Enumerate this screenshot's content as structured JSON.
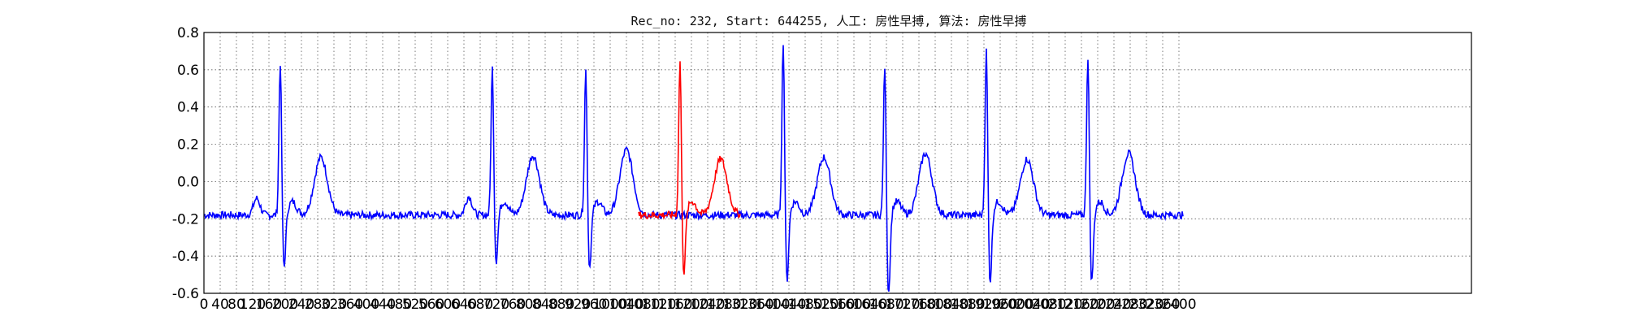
{
  "chart_data": {
    "type": "line",
    "title": "Rec_no: 232, Start: 644255, 人工: 房性早搏, 算法: 房性早搏",
    "xlabel": "",
    "ylabel": "",
    "xlim": [
      0,
      3120
    ],
    "ylim": [
      -0.6,
      0.8
    ],
    "grid": true,
    "y_ticks": [
      "0.8",
      "0.6",
      "0.4",
      "0.2",
      "0.0",
      "-0.2",
      "-0.4",
      "-0.6"
    ],
    "x_ticks": [
      0,
      40,
      80,
      120,
      160,
      200,
      240,
      280,
      320,
      360,
      400,
      440,
      480,
      520,
      560,
      600,
      640,
      680,
      720,
      760,
      800,
      840,
      880,
      920,
      960,
      1000,
      1040,
      1080,
      1120,
      1160,
      1200,
      1240,
      1280,
      1320,
      1360,
      1400,
      1440,
      1480,
      1520,
      1560,
      1600,
      1640,
      1680,
      1720,
      1760,
      1800,
      1840,
      1880,
      1920,
      1960,
      2000,
      2040,
      2080,
      2120,
      2160,
      2200,
      2240,
      2280,
      2320,
      2360,
      2400
    ],
    "x_tick_labels": [
      "0",
      "40",
      "80",
      "120",
      "160",
      "200",
      "240",
      "280",
      "320",
      "360",
      "400",
      "440",
      "480",
      "520",
      "560",
      "600",
      "640",
      "680",
      "720",
      "760",
      "800",
      "840",
      "880",
      "920",
      "960",
      "1000",
      "1040",
      "1080",
      "1120",
      "1160",
      "1200",
      "1240",
      "1280",
      "1320",
      "1360",
      "1400",
      "1440",
      "1480",
      "1520",
      "1560",
      "1600",
      "1640",
      "1680",
      "1720",
      "1760",
      "1800",
      "1840",
      "1880",
      "1920",
      "1960",
      "2000",
      "2040",
      "2080",
      "2120",
      "2160",
      "2200",
      "2240",
      "2280",
      "2320",
      "2360",
      "2400"
    ],
    "series": [
      {
        "color": "#0000ff",
        "beats": [
          {
            "r_x": 188,
            "r_peak": 0.66,
            "s_min": -0.48,
            "t_x": 288,
            "t_peak": 0.13,
            "p_x": 130,
            "p_peak": -0.09
          },
          {
            "r_x": 710,
            "r_peak": 0.63,
            "s_min": -0.45,
            "t_x": 810,
            "t_peak": 0.14,
            "p_x": 652,
            "p_peak": -0.08
          },
          {
            "r_x": 940,
            "r_peak": 0.62,
            "s_min": -0.48,
            "t_x": 1040,
            "t_peak": 0.17,
            "p_x": 0,
            "p_peak": -0.2
          },
          {
            "r_x": 1426,
            "r_peak": 0.78,
            "s_min": -0.55,
            "t_x": 1526,
            "t_peak": 0.13,
            "p_x": 0,
            "p_peak": -0.2
          },
          {
            "r_x": 1676,
            "r_peak": 0.65,
            "s_min": -0.62,
            "t_x": 1776,
            "t_peak": 0.15,
            "p_x": 0,
            "p_peak": -0.2
          },
          {
            "r_x": 1926,
            "r_peak": 0.73,
            "s_min": -0.56,
            "t_x": 2026,
            "t_peak": 0.12,
            "p_x": 0,
            "p_peak": -0.2
          },
          {
            "r_x": 2176,
            "r_peak": 0.7,
            "s_min": -0.56,
            "t_x": 2276,
            "t_peak": 0.15,
            "p_x": 0,
            "p_peak": -0.22
          }
        ],
        "x_start": 0,
        "x_end": 2410
      },
      {
        "color": "#ff0000",
        "beats": [
          {
            "r_x": 1172,
            "r_peak": 0.67,
            "s_min": -0.51,
            "t_x": 1272,
            "t_peak": 0.12,
            "p_x": 0,
            "p_peak": -0.22
          }
        ],
        "x_start": 1070,
        "x_end": 1320
      }
    ]
  }
}
